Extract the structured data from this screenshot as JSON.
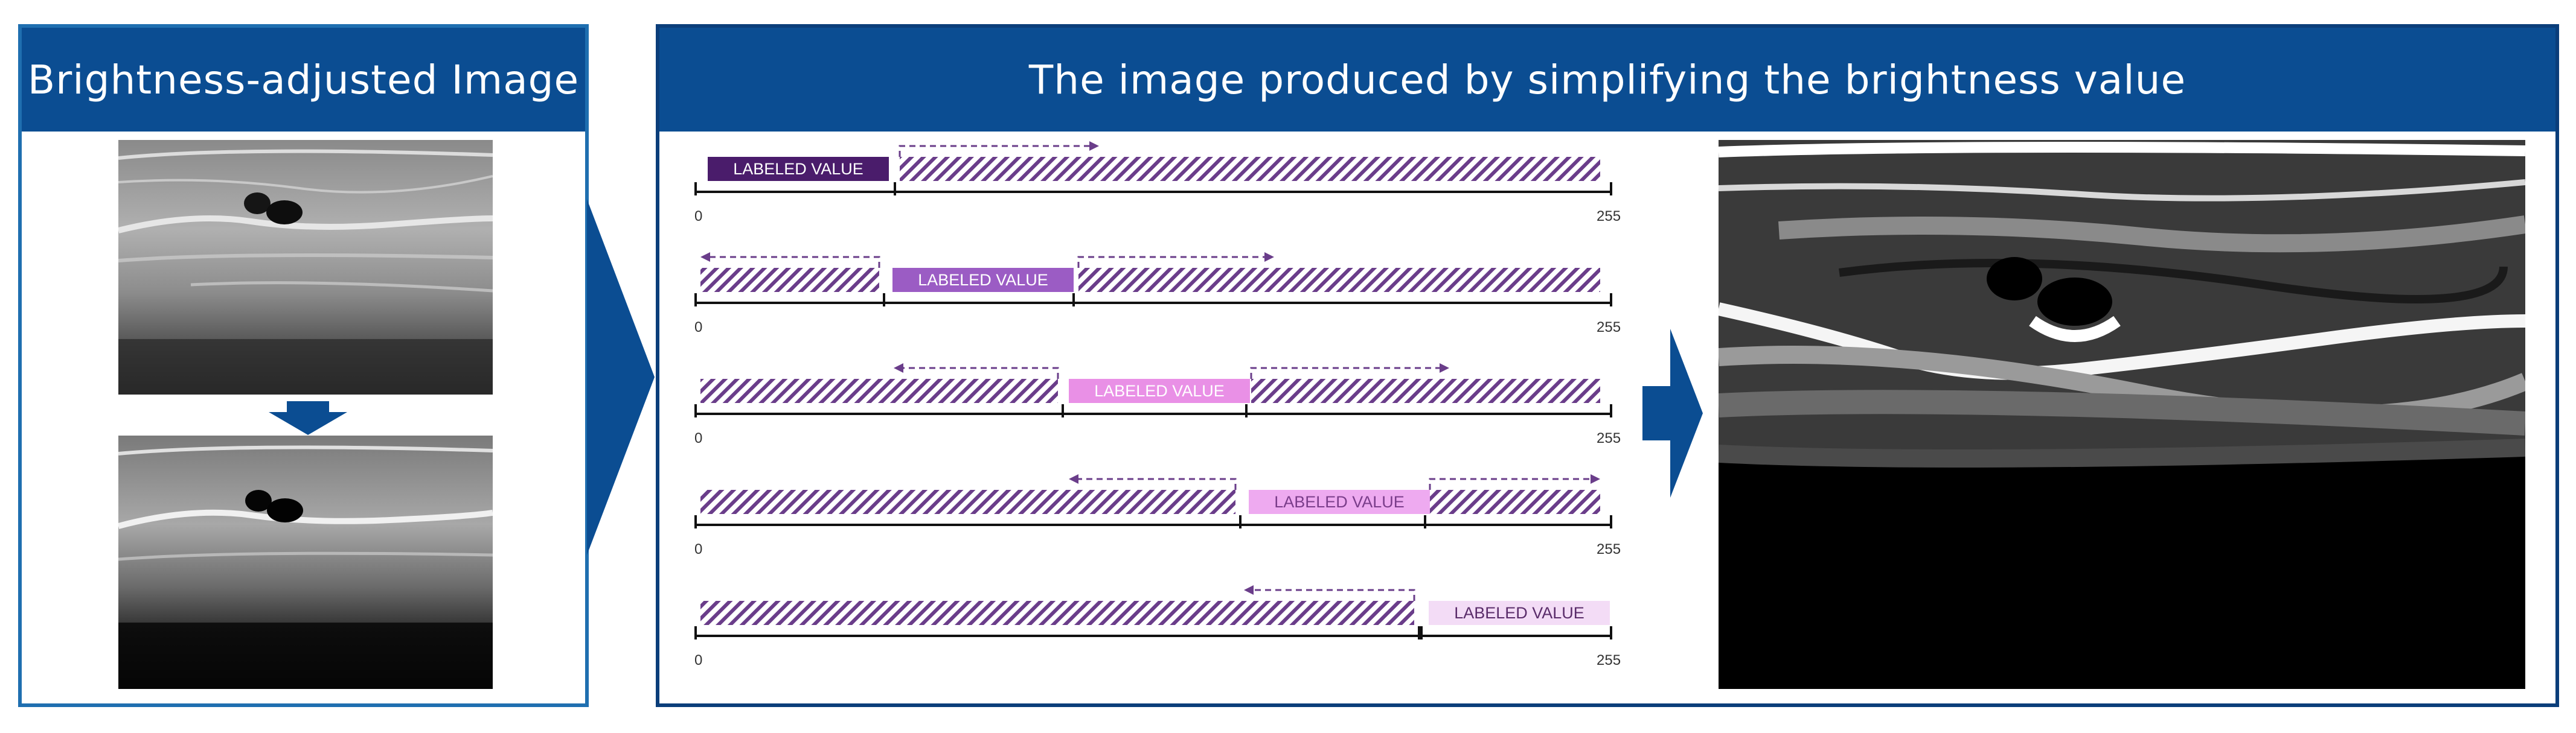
{
  "left_panel": {
    "title": "Brightness-adjusted Image"
  },
  "right_panel": {
    "title": "The image produced by simplifying the brightness value"
  },
  "rows": [
    {
      "label": "LABELED VALUE",
      "fill": "#4a1c6b",
      "text_color": "#ffffff",
      "min": "0",
      "max": "255"
    },
    {
      "label": "LABELED VALUE",
      "fill": "#9b5cc4",
      "text_color": "#ffffff",
      "min": "0",
      "max": "255"
    },
    {
      "label": "LABELED VALUE",
      "fill": "#e990e6",
      "text_color": "#ffffff",
      "min": "0",
      "max": "255"
    },
    {
      "label": "LABELED VALUE",
      "fill": "#eeaaf0",
      "text_color": "#7a3d8a",
      "min": "0",
      "max": "255"
    },
    {
      "label": "LABELED VALUE",
      "fill": "#f3dcf6",
      "text_color": "#5a2c6a",
      "min": "0",
      "max": "255"
    }
  ],
  "colors": {
    "header_bg": "#0b4d92",
    "arrow": "#0b4d92",
    "hatch": "#6a3d8a"
  }
}
